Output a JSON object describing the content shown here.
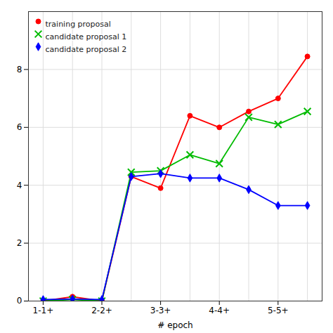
{
  "chart_data": {
    "type": "line",
    "xlabel": "# epoch",
    "x": [
      1,
      2,
      3,
      4,
      5,
      6,
      7,
      8,
      9,
      10
    ],
    "xlim": [
      0.5,
      10.5
    ],
    "xticks": [
      {
        "value": 1,
        "label": "1-1+"
      },
      {
        "value": 3,
        "label": "2-2+"
      },
      {
        "value": 5,
        "label": "3-3+"
      },
      {
        "value": 7,
        "label": "4-4+"
      },
      {
        "value": 9,
        "label": "5-5+"
      }
    ],
    "ylim": [
      0,
      10
    ],
    "yticks": [
      0,
      2,
      4,
      6,
      8
    ],
    "grid": true,
    "legend": "upper left",
    "series": [
      {
        "name": "training proposal",
        "color": "#FF0000",
        "marker": "circle",
        "values": [
          0.0,
          0.15,
          0.0,
          4.3,
          3.9,
          6.4,
          6.0,
          6.55,
          7.0,
          8.45
        ]
      },
      {
        "name": "candidate proposal 1",
        "color": "#00BB00",
        "marker": "x",
        "values": [
          0.0,
          0.05,
          0.0,
          4.45,
          4.5,
          5.05,
          4.75,
          6.35,
          6.1,
          6.55
        ]
      },
      {
        "name": "candidate proposal 2",
        "color": "#0000FF",
        "marker": "diamond",
        "values": [
          0.05,
          0.07,
          0.05,
          4.3,
          4.4,
          4.25,
          4.25,
          3.85,
          3.3,
          3.3
        ]
      }
    ]
  }
}
